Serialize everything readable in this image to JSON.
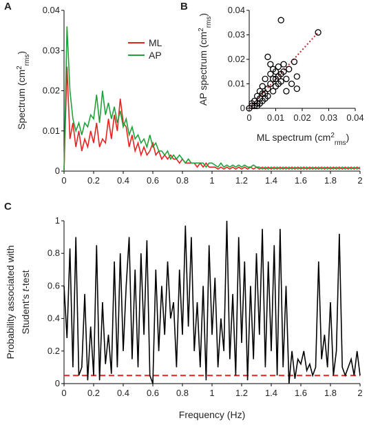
{
  "chart_data": [
    {
      "type": "line",
      "panel": "A",
      "ylabel": [
        "Spectrum (cm",
        "2",
        "rms",
        ")"
      ],
      "x": [
        0,
        0.02,
        0.04,
        0.06,
        0.08,
        0.1,
        0.12,
        0.14,
        0.16,
        0.18,
        0.2,
        0.22,
        0.24,
        0.26,
        0.28,
        0.3,
        0.32,
        0.34,
        0.36,
        0.38,
        0.4,
        0.42,
        0.44,
        0.46,
        0.48,
        0.5,
        0.52,
        0.54,
        0.56,
        0.58,
        0.6,
        0.62,
        0.64,
        0.66,
        0.68,
        0.7,
        0.72,
        0.74,
        0.76,
        0.78,
        0.8,
        0.82,
        0.84,
        0.86,
        0.88,
        0.9,
        0.92,
        0.94,
        0.96,
        0.98,
        1,
        1.02,
        1.04,
        1.06,
        1.08,
        1.1,
        1.12,
        1.14,
        1.16,
        1.18,
        1.2,
        1.22,
        1.24,
        1.26,
        1.28,
        1.3,
        1.32,
        1.34,
        1.36,
        1.38,
        1.4,
        1.42,
        1.44,
        1.46,
        1.48,
        1.5,
        1.52,
        1.54,
        1.56,
        1.58,
        1.6,
        1.62,
        1.64,
        1.66,
        1.68,
        1.7,
        1.72,
        1.74,
        1.76,
        1.78,
        1.8,
        1.82,
        1.84,
        1.86,
        1.88,
        1.9,
        1.92,
        1.94,
        1.96,
        1.98,
        2
      ],
      "series": [
        {
          "name": "ML",
          "color": "#e8211e",
          "values": [
            0,
            0.026,
            0.008,
            0.012,
            0.006,
            0.01,
            0.005,
            0.008,
            0.006,
            0.01,
            0.007,
            0.012,
            0.006,
            0.008,
            0.007,
            0.013,
            0.008,
            0.014,
            0.01,
            0.018,
            0.012,
            0.011,
            0.006,
            0.009,
            0.005,
            0.007,
            0.004,
            0.006,
            0.004,
            0.005,
            0.007,
            0.004,
            0.005,
            0.003,
            0.004,
            0.003,
            0.004,
            0.003,
            0.003,
            0.002,
            0.003,
            0.002,
            0.002,
            0.002,
            0.002,
            0.001,
            0.002,
            0.001,
            0.002,
            0.001,
            0.001,
            0.001,
            0.0005,
            0.001,
            0.0005,
            0.001,
            0.0005,
            0.001,
            0.0005,
            0.001,
            0.0005,
            0.001,
            0.0005,
            0.001,
            0.0005,
            0.001,
            0.0005,
            0.001,
            0.0005,
            0.001,
            0.0005,
            0.001,
            0.0005,
            0.001,
            0.0005,
            0.001,
            0.0005,
            0.001,
            0.0005,
            0.001,
            0.0005,
            0.001,
            0.0005,
            0.001,
            0.0005,
            0.001,
            0.0005,
            0.001,
            0.0005,
            0.001,
            0.0005,
            0.001,
            0.0005,
            0.001,
            0.0005,
            0.001,
            0.0005,
            0.001,
            0.0005,
            0.001,
            0.0005
          ]
        },
        {
          "name": "AP",
          "color": "#1fa13a",
          "values": [
            0,
            0.036,
            0.02,
            0.013,
            0.01,
            0.012,
            0.009,
            0.012,
            0.011,
            0.014,
            0.013,
            0.019,
            0.012,
            0.02,
            0.014,
            0.017,
            0.013,
            0.016,
            0.012,
            0.015,
            0.011,
            0.013,
            0.009,
            0.011,
            0.008,
            0.009,
            0.007,
            0.008,
            0.006,
            0.009,
            0.006,
            0.007,
            0.005,
            0.005,
            0.004,
            0.005,
            0.003,
            0.004,
            0.003,
            0.004,
            0.003,
            0.002,
            0.003,
            0.002,
            0.002,
            0.002,
            0.002,
            0.002,
            0.001,
            0.002,
            0.002,
            0.0015,
            0.001,
            0.002,
            0.001,
            0.0015,
            0.001,
            0.0015,
            0.001,
            0.0015,
            0.001,
            0.0015,
            0.001,
            0.001,
            0.0015,
            0.001,
            0.001,
            0.0005,
            0.001,
            0.0005,
            0.001,
            0.0005,
            0.001,
            0.0005,
            0.001,
            0.0005,
            0.001,
            0.0005,
            0.001,
            0.0005,
            0.001,
            0.0005,
            0.001,
            0.0005,
            0.001,
            0.0005,
            0.001,
            0.0005,
            0.001,
            0.0005,
            0.001,
            0.0005,
            0.001,
            0.0005,
            0.001,
            0.0005,
            0.001,
            0.0005,
            0.001,
            0.0005,
            0.001
          ]
        }
      ],
      "legend": "upper center",
      "xlim": [
        0,
        2
      ],
      "xticks": [
        0,
        0.2,
        0.4,
        0.6,
        0.8,
        1,
        1.2,
        1.4,
        1.6,
        1.8,
        2
      ],
      "ylim": [
        0,
        0.04
      ],
      "yticks": [
        0,
        0.01,
        0.02,
        0.03,
        0.04
      ]
    },
    {
      "type": "scatter",
      "panel": "B",
      "xlabel": [
        "ML spectrum (cm",
        "2",
        "rms",
        ")"
      ],
      "ylabel": [
        "AP spectrum (cm",
        "2",
        "rms",
        ")"
      ],
      "x": [
        0,
        0.001,
        0.002,
        0.002,
        0.003,
        0.003,
        0.004,
        0.004,
        0.005,
        0.005,
        0.006,
        0.006,
        0.007,
        0.007,
        0.008,
        0.008,
        0.009,
        0.009,
        0.01,
        0.01,
        0.011,
        0.011,
        0.012,
        0.012,
        0.013,
        0.013,
        0.014,
        0.014,
        0.015,
        0.016,
        0.017,
        0.018,
        0.018,
        0.026,
        0.001,
        0.003,
        0.006,
        0.008,
        0.01,
        0.012,
        0.005,
        0.009,
        0.004,
        0.007,
        0.011
      ],
      "y": [
        0,
        0.001,
        0.001,
        0.003,
        0.002,
        0.005,
        0.004,
        0.007,
        0.003,
        0.009,
        0.006,
        0.012,
        0.008,
        0.021,
        0.01,
        0.014,
        0.007,
        0.012,
        0.015,
        0.009,
        0.013,
        0.017,
        0.036,
        0.011,
        0.015,
        0.018,
        0.012,
        0.007,
        0.016,
        0.01,
        0.019,
        0.013,
        0.008,
        0.031,
        0.002,
        0.001,
        0.004,
        0.018,
        0.012,
        0.014,
        0.006,
        0.016,
        0.002,
        0.005,
        0.01
      ],
      "trendline": {
        "x": [
          0,
          0.026
        ],
        "y": [
          0,
          0.031
        ],
        "color": "#c0262b"
      },
      "xlim": [
        0,
        0.04
      ],
      "xticks": [
        0,
        0.01,
        0.02,
        0.03,
        0.04
      ],
      "ylim": [
        0,
        0.04
      ],
      "yticks": [
        0,
        0.01,
        0.02,
        0.03,
        0.04
      ]
    },
    {
      "type": "line",
      "panel": "C",
      "xlabel": [
        "Frequency (Hz)"
      ],
      "ylabel": [
        "Probability associated with",
        "Student's ",
        "t",
        "-test"
      ],
      "x": [
        0,
        0.02,
        0.04,
        0.06,
        0.08,
        0.1,
        0.12,
        0.14,
        0.16,
        0.18,
        0.2,
        0.22,
        0.24,
        0.26,
        0.28,
        0.3,
        0.32,
        0.34,
        0.36,
        0.38,
        0.4,
        0.42,
        0.44,
        0.46,
        0.48,
        0.5,
        0.52,
        0.54,
        0.56,
        0.58,
        0.6,
        0.62,
        0.64,
        0.66,
        0.68,
        0.7,
        0.72,
        0.74,
        0.76,
        0.78,
        0.8,
        0.82,
        0.84,
        0.86,
        0.88,
        0.9,
        0.92,
        0.94,
        0.96,
        0.98,
        1,
        1.02,
        1.04,
        1.06,
        1.08,
        1.1,
        1.12,
        1.14,
        1.16,
        1.18,
        1.2,
        1.22,
        1.24,
        1.26,
        1.28,
        1.3,
        1.32,
        1.34,
        1.36,
        1.38,
        1.4,
        1.42,
        1.44,
        1.46,
        1.48,
        1.5,
        1.52,
        1.54,
        1.56,
        1.58,
        1.6,
        1.62,
        1.64,
        1.66,
        1.68,
        1.7,
        1.72,
        1.74,
        1.76,
        1.78,
        1.8,
        1.82,
        1.84,
        1.86,
        1.88,
        1.9,
        1.92,
        1.94,
        1.96,
        1.98,
        2
      ],
      "series": [
        {
          "color": "#000000",
          "values": [
            0.6,
            0.28,
            0.83,
            0.1,
            0.9,
            0.05,
            0.1,
            0.55,
            0.02,
            0.35,
            0.05,
            0.85,
            0.02,
            0.5,
            0.12,
            0.3,
            0.06,
            0.75,
            0.1,
            0.8,
            0.2,
            0.6,
            0.9,
            0.15,
            0.7,
            0.1,
            0.8,
            0.3,
            0.88,
            0.05,
            0,
            0.7,
            0.2,
            0.6,
            0.3,
            0.75,
            0.4,
            0.5,
            0.1,
            0.7,
            0.3,
            0.97,
            0.35,
            0.9,
            0.2,
            0.5,
            0.1,
            0.6,
            0.02,
            0.85,
            0.3,
            0.65,
            0.1,
            0.4,
            0.2,
            1,
            0.15,
            0.55,
            0.05,
            0.9,
            0.25,
            0.75,
            0.02,
            0.6,
            0.15,
            0.8,
            0.3,
            0.95,
            0.1,
            0.75,
            0.2,
            0.85,
            0.05,
            0.95,
            0.1,
            0.6,
            0,
            0.2,
            0.03,
            0.15,
            0.12,
            0.2,
            0.08,
            0.12,
            0.05,
            0.1,
            0.75,
            0.15,
            0.3,
            0.1,
            0.5,
            0.05,
            0.2,
            0.92,
            0.1,
            0.05,
            0.1,
            0.15,
            0.05,
            0.2,
            0.05
          ]
        }
      ],
      "hline": {
        "value": 0.05,
        "color": "#e8211e"
      },
      "xlim": [
        0,
        2
      ],
      "xticks": [
        0,
        0.2,
        0.4,
        0.6,
        0.8,
        1,
        1.2,
        1.4,
        1.6,
        1.8,
        2
      ],
      "ylim": [
        0,
        1
      ],
      "yticks": [
        0,
        0.2,
        0.4,
        0.6,
        0.8,
        1
      ]
    }
  ]
}
